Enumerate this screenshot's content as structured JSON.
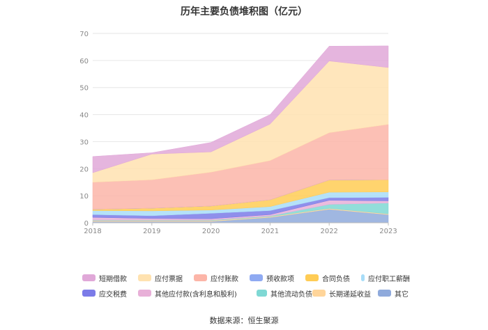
{
  "chart_data": {
    "type": "area",
    "stacked": true,
    "title": "历年主要负债堆积图（亿元）",
    "xlabel": "",
    "ylabel": "",
    "categories": [
      "2018",
      "2019",
      "2020",
      "2021",
      "2022",
      "2023"
    ],
    "ylim": [
      0,
      70
    ],
    "yticks": [
      0,
      10,
      20,
      30,
      40,
      50,
      60,
      70
    ],
    "grid": true,
    "legend_position": "bottom",
    "series": [
      {
        "name": "其它",
        "color": "#8FAADC",
        "values": [
          0.5,
          0.5,
          0.5,
          2.0,
          5.0,
          3.0
        ]
      },
      {
        "name": "长期递延收益",
        "color": "#FFD59A",
        "values": [
          0.3,
          0.3,
          0.3,
          0.3,
          0.3,
          0.3
        ]
      },
      {
        "name": "其他流动负债",
        "color": "#7FD8D4",
        "values": [
          0.2,
          0.2,
          0.2,
          0.2,
          1.5,
          4.0
        ]
      },
      {
        "name": "其他应付款(含利息和股利)",
        "color": "#E8B0D8",
        "values": [
          1.0,
          0.6,
          0.5,
          0.5,
          1.5,
          0.8
        ]
      },
      {
        "name": "应交税费",
        "color": "#7B7BE8",
        "values": [
          1.0,
          1.0,
          2.0,
          1.5,
          1.0,
          1.3
        ]
      },
      {
        "name": "应付职工薪酬",
        "color": "#A8DDF8",
        "values": [
          1.5,
          1.8,
          1.2,
          1.5,
          2.0,
          2.0
        ]
      },
      {
        "name": "合同负债",
        "color": "#FFCC55",
        "values": [
          0.5,
          1.0,
          1.5,
          2.5,
          4.5,
          4.5
        ]
      },
      {
        "name": "预收款项",
        "color": "#8FAAF2",
        "values": [
          0.0,
          0.0,
          0.0,
          0.0,
          0.0,
          0.0
        ]
      },
      {
        "name": "应付账款",
        "color": "#FCB5A8",
        "values": [
          10.0,
          10.5,
          12.5,
          14.5,
          17.5,
          20.5
        ]
      },
      {
        "name": "应付票据",
        "color": "#FFE2B0",
        "values": [
          3.5,
          9.5,
          7.5,
          13.5,
          26.5,
          21.0
        ]
      },
      {
        "name": "短期借款",
        "color": "#E0A8D8",
        "values": [
          6.0,
          0.5,
          3.5,
          3.5,
          5.5,
          8.0
        ]
      }
    ],
    "legend": [
      [
        "短期借款",
        "应付票据",
        "应付账款",
        "预收款项",
        "合同负债",
        "应付职工薪酬"
      ],
      [
        "应交税费",
        "其他应付款(含利息和股利)",
        "其他流动负债",
        "长期递延收益",
        "其它"
      ]
    ],
    "source": "数据来源：恒生聚源"
  }
}
